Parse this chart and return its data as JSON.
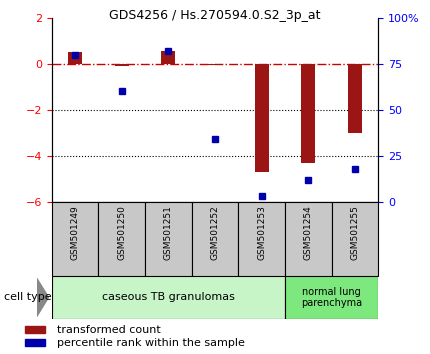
{
  "title": "GDS4256 / Hs.270594.0.S2_3p_at",
  "samples": [
    "GSM501249",
    "GSM501250",
    "GSM501251",
    "GSM501252",
    "GSM501253",
    "GSM501254",
    "GSM501255"
  ],
  "transformed_count": [
    0.5,
    -0.1,
    0.55,
    -0.05,
    -4.7,
    -4.3,
    -3.0
  ],
  "percentile_rank": [
    80,
    60,
    82,
    34,
    3,
    12,
    18
  ],
  "ylim_left": [
    -6,
    2
  ],
  "ylim_right": [
    0,
    100
  ],
  "yticks_left": [
    -6,
    -4,
    -2,
    0,
    2
  ],
  "yticks_right": [
    0,
    25,
    50,
    75,
    100
  ],
  "ytick_labels_right": [
    "0",
    "25",
    "50",
    "75",
    "100%"
  ],
  "bar_color": "#9B1515",
  "dot_color": "#0000AA",
  "dashed_line_color": "#CC0000",
  "cell_type_groups": [
    {
      "label": "caseous TB granulomas",
      "start": 0,
      "end": 4,
      "color": "#c8f5c8"
    },
    {
      "label": "normal lung\nparenchyma",
      "start": 5,
      "end": 6,
      "color": "#7de87d"
    }
  ],
  "legend_items": [
    {
      "label": "transformed count",
      "color": "#9B1515"
    },
    {
      "label": "percentile rank within the sample",
      "color": "#0000AA"
    }
  ],
  "cell_type_label": "cell type",
  "background_color": "#ffffff",
  "plot_bg_color": "#ffffff",
  "xticklabel_bg": "#c8c8c8"
}
